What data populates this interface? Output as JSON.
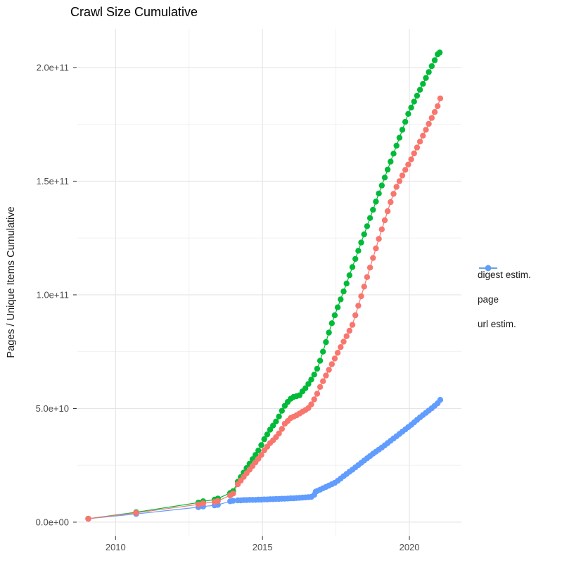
{
  "title": "Crawl Size Cumulative",
  "legend": {
    "items": [
      {
        "label": "digest estim.",
        "color": "#F8766D"
      },
      {
        "label": "page",
        "color": "#00BA38"
      },
      {
        "label": "url estim.",
        "color": "#619CFF"
      }
    ]
  },
  "chart_data": {
    "type": "scatter",
    "title": "Crawl Size Cumulative",
    "xlabel": "",
    "ylabel": "Pages / Unique Items Cumulative",
    "x_tick_labels": [
      "2010",
      "2015",
      "2020"
    ],
    "x_ticks": [
      2010,
      2015,
      2020
    ],
    "x_minor_ticks": [
      2012.5,
      2017.5
    ],
    "y_tick_labels": [
      "0.0e+00",
      "5.0e+10",
      "1.0e+11",
      "1.5e+11",
      "2.0e+11"
    ],
    "y_ticks_e9": [
      0,
      50,
      100,
      150,
      200
    ],
    "y_minor_ticks_e9": [
      25,
      75,
      125,
      175
    ],
    "x_domain": [
      2008.7,
      2021.77
    ],
    "y_domain_e9": [
      -6.2,
      217
    ],
    "values_unit": "items, in billions (1e9)",
    "grid": true,
    "legend_position": "right",
    "series": [
      {
        "name": "digest estim.",
        "color": "#F8766D",
        "points": [
          [
            2009.07,
            1.5
          ],
          [
            2010.7,
            4.1
          ],
          [
            2012.82,
            7.8
          ],
          [
            2012.98,
            8.3
          ],
          [
            2013.37,
            8.9
          ],
          [
            2013.48,
            9.3
          ],
          [
            2013.9,
            11.8
          ],
          [
            2014.0,
            12.6
          ],
          [
            2014.16,
            16.7
          ],
          [
            2014.26,
            18.3
          ],
          [
            2014.36,
            19.9
          ],
          [
            2014.46,
            21.5
          ],
          [
            2014.56,
            23.1
          ],
          [
            2014.66,
            24.7
          ],
          [
            2014.76,
            26.3
          ],
          [
            2014.86,
            27.9
          ],
          [
            2014.96,
            29.6
          ],
          [
            2015.06,
            31.6
          ],
          [
            2015.16,
            33.2
          ],
          [
            2015.26,
            34.8
          ],
          [
            2015.36,
            36.0
          ],
          [
            2015.46,
            37.4
          ],
          [
            2015.56,
            39.0
          ],
          [
            2015.66,
            41.0
          ],
          [
            2015.76,
            43.3
          ],
          [
            2015.86,
            44.5
          ],
          [
            2015.96,
            45.8
          ],
          [
            2016.06,
            46.4
          ],
          [
            2016.16,
            47.0
          ],
          [
            2016.26,
            47.8
          ],
          [
            2016.36,
            48.6
          ],
          [
            2016.46,
            49.3
          ],
          [
            2016.56,
            50.2
          ],
          [
            2016.66,
            51.8
          ],
          [
            2016.76,
            54.0
          ],
          [
            2016.86,
            56.5
          ],
          [
            2016.96,
            59.5
          ],
          [
            2017.06,
            62.0
          ],
          [
            2017.16,
            64.5
          ],
          [
            2017.26,
            67.0
          ],
          [
            2017.36,
            69.5
          ],
          [
            2017.46,
            72.0
          ],
          [
            2017.56,
            74.5
          ],
          [
            2017.66,
            77.0
          ],
          [
            2017.76,
            79.4
          ],
          [
            2017.86,
            81.8
          ],
          [
            2017.96,
            84.2
          ],
          [
            2018.06,
            86.8
          ],
          [
            2018.16,
            91.0
          ],
          [
            2018.26,
            95.2
          ],
          [
            2018.36,
            99.4
          ],
          [
            2018.46,
            103.6
          ],
          [
            2018.56,
            107.8
          ],
          [
            2018.66,
            112.0
          ],
          [
            2018.76,
            116.2
          ],
          [
            2018.86,
            120.4
          ],
          [
            2018.96,
            124.6
          ],
          [
            2019.06,
            128.8
          ],
          [
            2019.16,
            132.8
          ],
          [
            2019.26,
            136.8
          ],
          [
            2019.36,
            140.8
          ],
          [
            2019.46,
            144.4
          ],
          [
            2019.56,
            147.5
          ],
          [
            2019.66,
            150.0
          ],
          [
            2019.76,
            152.5
          ],
          [
            2019.86,
            155.0
          ],
          [
            2019.96,
            157.3
          ],
          [
            2020.06,
            159.6
          ],
          [
            2020.16,
            162.2
          ],
          [
            2020.26,
            164.8
          ],
          [
            2020.36,
            167.4
          ],
          [
            2020.46,
            170.0
          ],
          [
            2020.56,
            172.6
          ],
          [
            2020.66,
            175.2
          ],
          [
            2020.76,
            177.8
          ],
          [
            2020.86,
            180.4
          ],
          [
            2020.96,
            183.0
          ],
          [
            2021.05,
            186.4
          ]
        ]
      },
      {
        "name": "page",
        "color": "#00BA38",
        "points": [
          [
            2009.07,
            1.5
          ],
          [
            2010.7,
            4.4
          ],
          [
            2012.82,
            8.6
          ],
          [
            2012.98,
            9.2
          ],
          [
            2013.37,
            9.9
          ],
          [
            2013.48,
            10.4
          ],
          [
            2013.9,
            12.8
          ],
          [
            2014.0,
            13.6
          ],
          [
            2014.16,
            17.8
          ],
          [
            2014.26,
            19.8
          ],
          [
            2014.36,
            21.8
          ],
          [
            2014.46,
            23.8
          ],
          [
            2014.56,
            25.7
          ],
          [
            2014.66,
            27.7
          ],
          [
            2014.76,
            29.6
          ],
          [
            2014.86,
            31.5
          ],
          [
            2014.96,
            33.9
          ],
          [
            2015.06,
            36.5
          ],
          [
            2015.16,
            38.6
          ],
          [
            2015.26,
            40.7
          ],
          [
            2015.36,
            42.5
          ],
          [
            2015.46,
            44.3
          ],
          [
            2015.56,
            46.5
          ],
          [
            2015.66,
            49.0
          ],
          [
            2015.76,
            51.2
          ],
          [
            2015.86,
            52.9
          ],
          [
            2015.96,
            54.3
          ],
          [
            2016.06,
            55.1
          ],
          [
            2016.16,
            55.4
          ],
          [
            2016.26,
            55.8
          ],
          [
            2016.36,
            57.5
          ],
          [
            2016.46,
            58.9
          ],
          [
            2016.56,
            60.8
          ],
          [
            2016.66,
            62.7
          ],
          [
            2016.76,
            64.9
          ],
          [
            2016.86,
            67.5
          ],
          [
            2016.96,
            71.0
          ],
          [
            2017.06,
            75.0
          ],
          [
            2017.16,
            79.2
          ],
          [
            2017.26,
            83.4
          ],
          [
            2017.36,
            87.5
          ],
          [
            2017.46,
            91.0
          ],
          [
            2017.56,
            94.5
          ],
          [
            2017.66,
            98.0
          ],
          [
            2017.76,
            101.5
          ],
          [
            2017.86,
            105.0
          ],
          [
            2017.96,
            108.6
          ],
          [
            2018.06,
            112.2
          ],
          [
            2018.16,
            115.8
          ],
          [
            2018.26,
            119.4
          ],
          [
            2018.36,
            123.0
          ],
          [
            2018.46,
            126.6
          ],
          [
            2018.56,
            130.2
          ],
          [
            2018.66,
            133.8
          ],
          [
            2018.76,
            137.4
          ],
          [
            2018.86,
            141.0
          ],
          [
            2018.96,
            144.6
          ],
          [
            2019.06,
            148.1
          ],
          [
            2019.16,
            151.6
          ],
          [
            2019.26,
            155.1
          ],
          [
            2019.36,
            158.6
          ],
          [
            2019.46,
            162.1
          ],
          [
            2019.56,
            165.6
          ],
          [
            2019.66,
            169.1
          ],
          [
            2019.76,
            172.6
          ],
          [
            2019.86,
            176.1
          ],
          [
            2019.96,
            179.6
          ],
          [
            2020.06,
            182.4
          ],
          [
            2020.16,
            185.0
          ],
          [
            2020.26,
            187.6
          ],
          [
            2020.36,
            190.2
          ],
          [
            2020.46,
            192.8
          ],
          [
            2020.56,
            195.4
          ],
          [
            2020.66,
            198.0
          ],
          [
            2020.76,
            200.6
          ],
          [
            2020.86,
            203.2
          ],
          [
            2020.96,
            205.8
          ],
          [
            2021.03,
            206.6
          ]
        ]
      },
      {
        "name": "url estim.",
        "color": "#619CFF",
        "points": [
          [
            2009.07,
            1.5
          ],
          [
            2010.7,
            3.6
          ],
          [
            2012.82,
            6.6
          ],
          [
            2012.98,
            6.9
          ],
          [
            2013.37,
            7.4
          ],
          [
            2013.48,
            7.6
          ],
          [
            2013.9,
            9.2
          ],
          [
            2014.0,
            9.4
          ],
          [
            2014.16,
            9.6
          ],
          [
            2014.26,
            9.6
          ],
          [
            2014.36,
            9.7
          ],
          [
            2014.46,
            9.7
          ],
          [
            2014.56,
            9.8
          ],
          [
            2014.66,
            9.8
          ],
          [
            2014.76,
            9.8
          ],
          [
            2014.86,
            9.9
          ],
          [
            2014.96,
            9.9
          ],
          [
            2015.06,
            10.0
          ],
          [
            2015.16,
            10.0
          ],
          [
            2015.26,
            10.1
          ],
          [
            2015.36,
            10.1
          ],
          [
            2015.46,
            10.2
          ],
          [
            2015.56,
            10.2
          ],
          [
            2015.66,
            10.3
          ],
          [
            2015.76,
            10.3
          ],
          [
            2015.86,
            10.4
          ],
          [
            2015.96,
            10.5
          ],
          [
            2016.06,
            10.5
          ],
          [
            2016.16,
            10.6
          ],
          [
            2016.26,
            10.7
          ],
          [
            2016.36,
            10.8
          ],
          [
            2016.46,
            10.9
          ],
          [
            2016.56,
            11.0
          ],
          [
            2016.66,
            11.1
          ],
          [
            2016.76,
            12.0
          ],
          [
            2016.81,
            13.4
          ],
          [
            2016.86,
            13.7
          ],
          [
            2016.96,
            14.3
          ],
          [
            2017.06,
            14.9
          ],
          [
            2017.16,
            15.5
          ],
          [
            2017.26,
            16.1
          ],
          [
            2017.36,
            16.7
          ],
          [
            2017.46,
            17.3
          ],
          [
            2017.56,
            18.2
          ],
          [
            2017.66,
            19.2
          ],
          [
            2017.76,
            20.2
          ],
          [
            2017.86,
            21.2
          ],
          [
            2017.96,
            22.2
          ],
          [
            2018.06,
            23.1
          ],
          [
            2018.16,
            24.1
          ],
          [
            2018.26,
            25.1
          ],
          [
            2018.36,
            26.1
          ],
          [
            2018.46,
            27.1
          ],
          [
            2018.56,
            28.1
          ],
          [
            2018.66,
            29.1
          ],
          [
            2018.76,
            30.1
          ],
          [
            2018.86,
            31.0
          ],
          [
            2018.96,
            31.9
          ],
          [
            2019.06,
            32.8
          ],
          [
            2019.16,
            33.8
          ],
          [
            2019.26,
            34.8
          ],
          [
            2019.36,
            35.8
          ],
          [
            2019.46,
            36.8
          ],
          [
            2019.56,
            37.8
          ],
          [
            2019.66,
            38.8
          ],
          [
            2019.76,
            39.8
          ],
          [
            2019.86,
            40.8
          ],
          [
            2019.96,
            41.8
          ],
          [
            2020.06,
            42.8
          ],
          [
            2020.16,
            43.9
          ],
          [
            2020.26,
            45.0
          ],
          [
            2020.36,
            46.1
          ],
          [
            2020.46,
            47.1
          ],
          [
            2020.56,
            48.1
          ],
          [
            2020.66,
            49.1
          ],
          [
            2020.76,
            50.1
          ],
          [
            2020.86,
            51.2
          ],
          [
            2020.96,
            52.3
          ],
          [
            2021.05,
            53.8
          ]
        ]
      }
    ]
  }
}
